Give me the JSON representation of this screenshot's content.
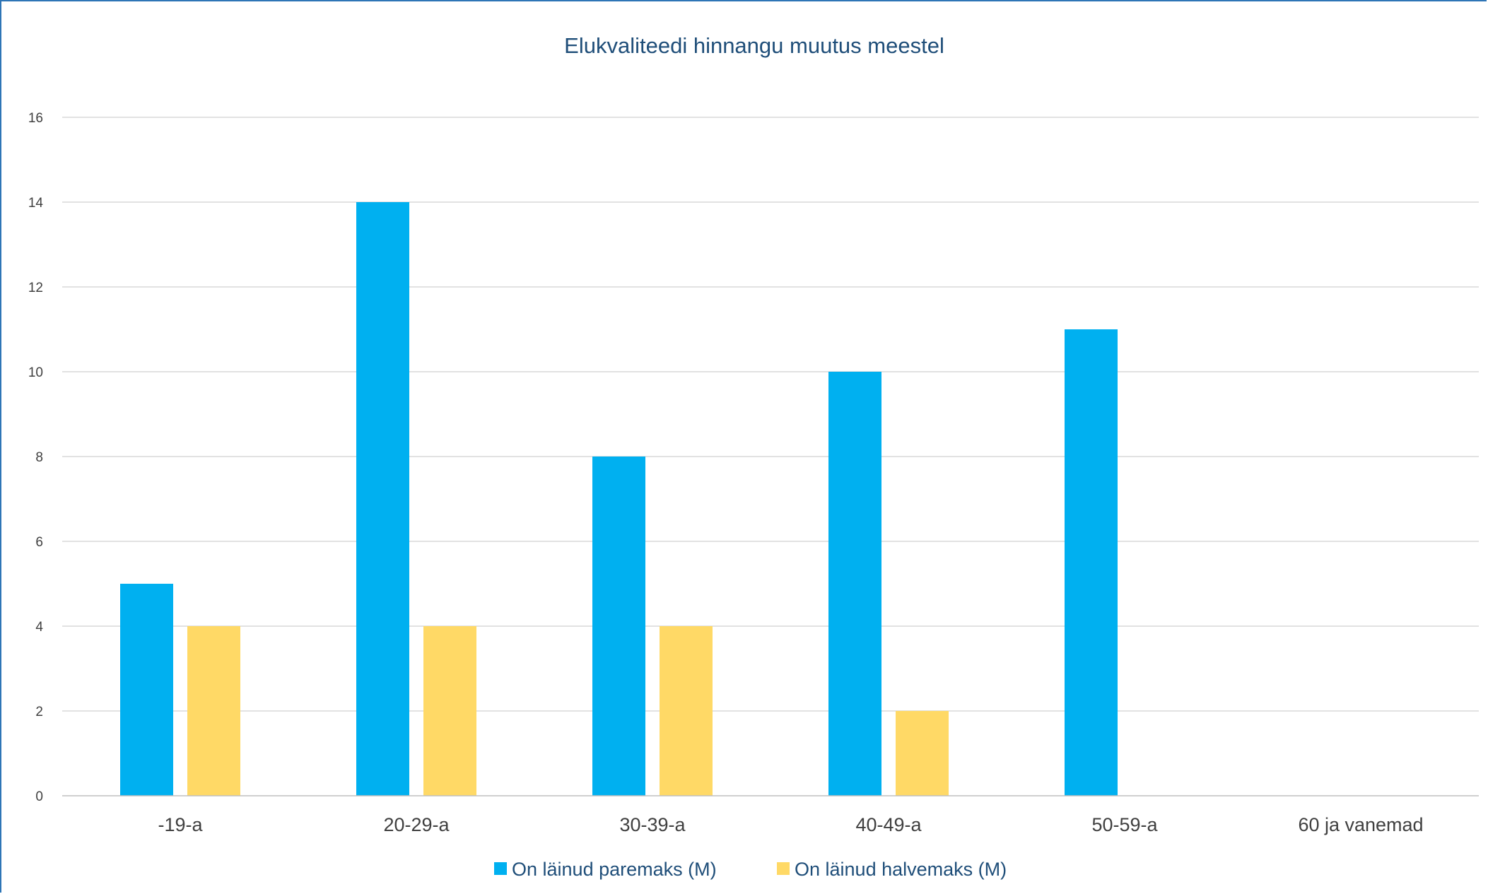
{
  "chart_data": {
    "type": "bar",
    "title": "Elukvaliteedi hinnangu muutus meestel",
    "xlabel": "",
    "ylabel": "",
    "categories": [
      "-19-a",
      "20-29-a",
      "30-39-a",
      "40-49-a",
      "50-59-a",
      "60 ja vanemad"
    ],
    "series": [
      {
        "name": "On läinud paremaks (M)",
        "color": "#00b0f0",
        "values": [
          5,
          14,
          8,
          10,
          11,
          0
        ]
      },
      {
        "name": "On läinud halvemaks  (M)",
        "color": "#ffd966",
        "values": [
          4,
          4,
          4,
          2,
          0,
          0
        ]
      }
    ],
    "ylim": [
      0,
      16
    ],
    "yticks": [
      0,
      2,
      4,
      6,
      8,
      10,
      12,
      14,
      16
    ],
    "grid": true,
    "legend_position": "bottom"
  }
}
